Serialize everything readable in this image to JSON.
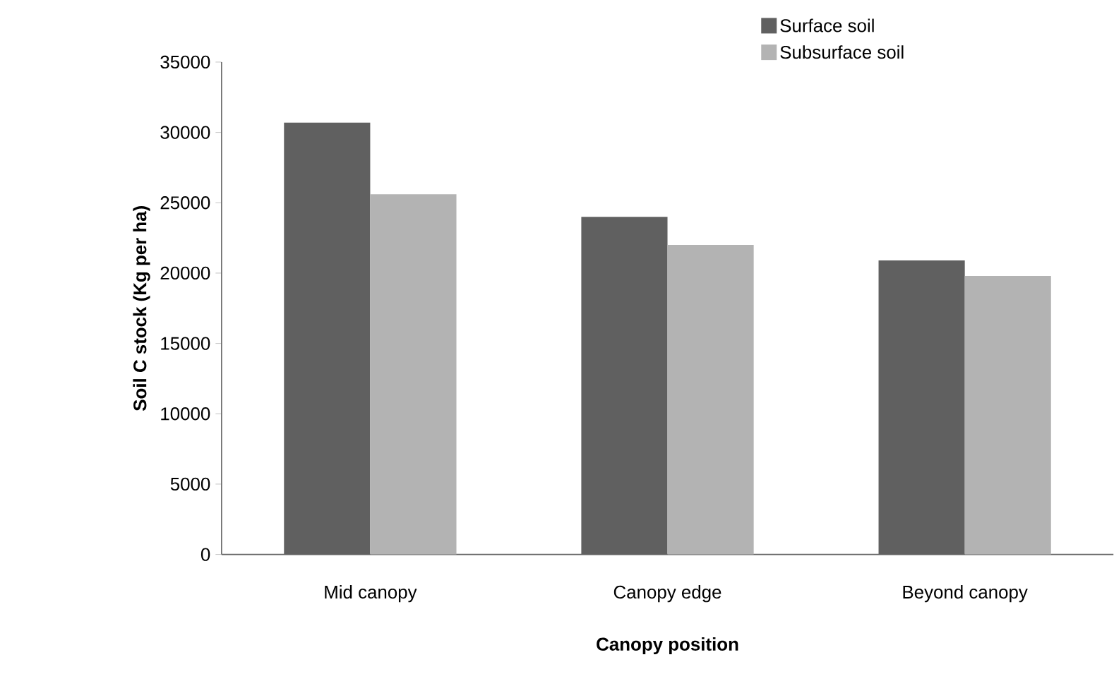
{
  "chart_data": {
    "type": "bar",
    "xlabel": "Canopy position",
    "ylabel": "Soil C stock (Kg per ha)",
    "categories": [
      "Mid canopy",
      "Canopy edge",
      "Beyond canopy"
    ],
    "series": [
      {
        "name": "Surface soil",
        "color": "#606060",
        "values": [
          30700,
          24000,
          20900
        ]
      },
      {
        "name": "Subsurface soil",
        "color": "#b3b3b3",
        "values": [
          25600,
          22000,
          19800
        ]
      }
    ],
    "ylim": [
      0,
      35000
    ],
    "yticks": [
      0,
      5000,
      10000,
      15000,
      20000,
      25000,
      30000,
      35000
    ],
    "grid": false,
    "legend": "top right"
  }
}
